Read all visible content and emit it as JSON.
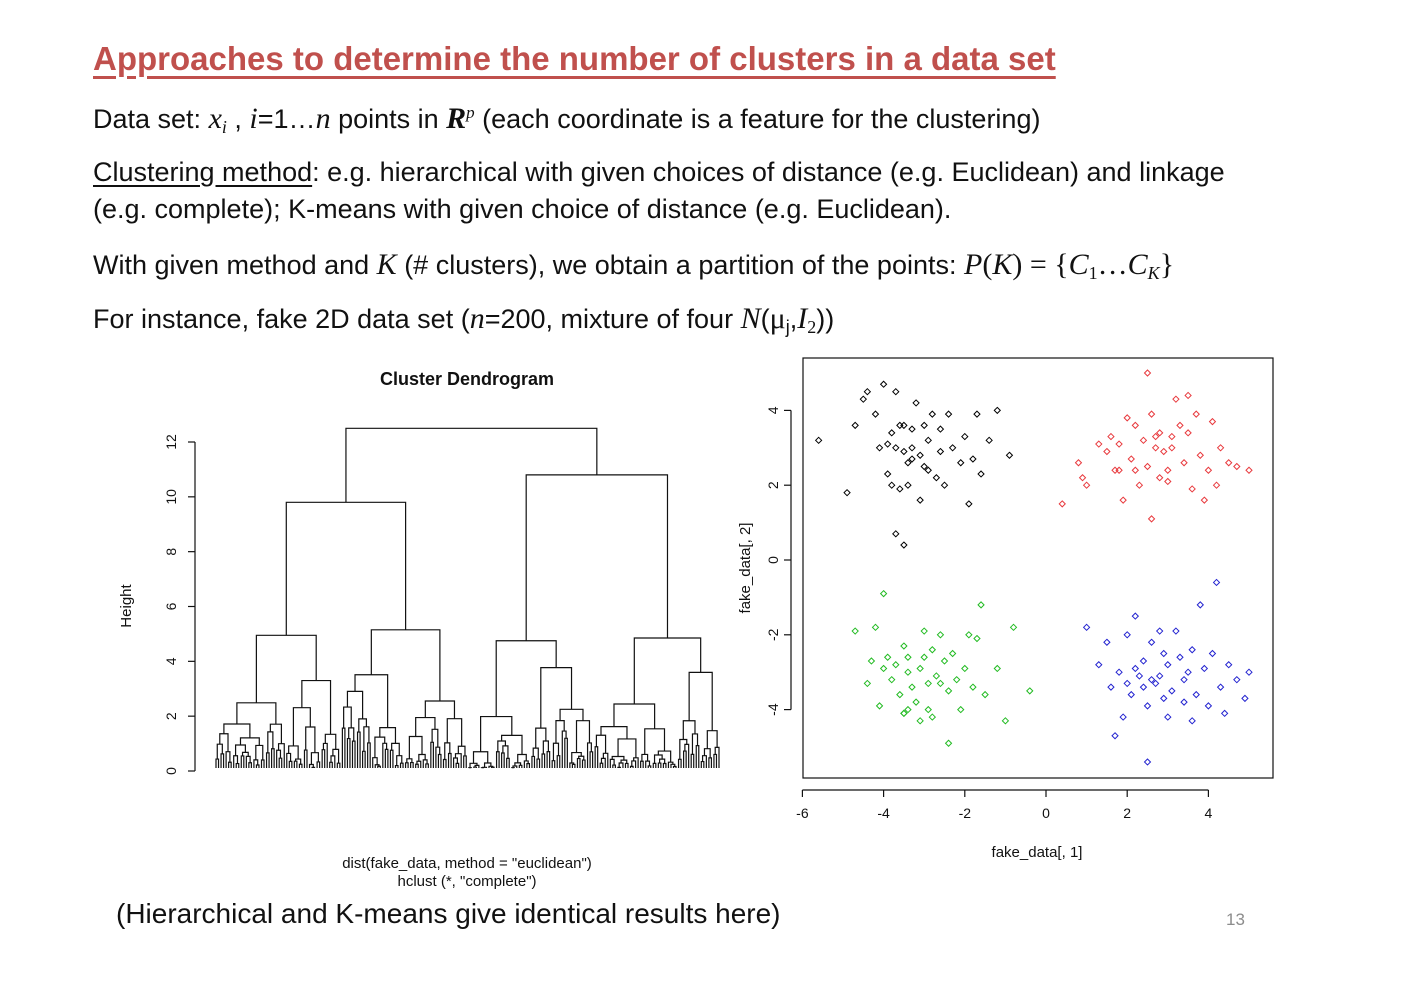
{
  "slide": {
    "title": "Approaches to determine the number of clusters in a data set",
    "line1": {
      "a": "Data set: ",
      "x": "x",
      "xi": "i",
      "b": " , ",
      "i": "i",
      "c": "=1…",
      "n": "n",
      "d": " points in ",
      "R": "R",
      "p": "p",
      "e": " (each coordinate is a feature for the clustering)"
    },
    "line2": {
      "u": "Clustering method",
      "rest": ": e.g. hierarchical with given choices of distance (e.g. Euclidean) and linkage",
      "cont": "(e.g. complete); K-means with given choice of distance (e.g. Euclidean)."
    },
    "line3": {
      "a": "With given method and ",
      "K": "K",
      "b": " (#  clusters), we obtain a partition of the points: ",
      "P": "P",
      "c": "(",
      "K2": "K",
      "d": ") = {",
      "C": "C",
      "one": "1",
      "e": "…",
      "C2": "C",
      "Ksub": "K",
      "f": "}"
    },
    "line4": {
      "a": "For instance, fake 2D data set (",
      "n": "n",
      "b": "=200, mixture of four ",
      "N": "N",
      "c": "(",
      "mu": "μ",
      "j": "j",
      "comma": ",",
      "I": "I",
      "two": "2",
      "d": "))"
    },
    "caption": "(Hierarchical and K-means give identical results here)",
    "page_number": "13"
  },
  "chart_data": [
    {
      "type": "dendrogram",
      "title": "Cluster Dendrogram",
      "xlabel_line1": "dist(fake_data, method = \"euclidean\")",
      "xlabel_line2": "hclust (*, \"complete\")",
      "ylabel": "Height",
      "ylim": [
        0,
        13
      ],
      "yticks": [
        "0",
        "2",
        "4",
        "6",
        "8",
        "10",
        "12"
      ],
      "n_leaves": 200,
      "top_merges": [
        {
          "name": "root",
          "height": 12.5
        },
        {
          "name": "left group",
          "height": 9.8
        },
        {
          "name": "right group",
          "height": 10.8
        },
        {
          "name": "cluster 1",
          "height": 4.95
        },
        {
          "name": "cluster 2",
          "height": 5.15
        },
        {
          "name": "cluster 3",
          "height": 4.75
        },
        {
          "name": "cluster 4",
          "height": 4.85
        }
      ]
    },
    {
      "type": "scatter",
      "xlabel": "fake_data[, 1]",
      "ylabel": "fake_data[, 2]",
      "xlim": [
        -6.2,
        5.5
      ],
      "ylim": [
        -5.9,
        5.4
      ],
      "xticks": [
        "-6",
        "-4",
        "-2",
        "0",
        "2",
        "4"
      ],
      "yticks": [
        "-4",
        "-2",
        "0",
        "2",
        "4"
      ],
      "series": [
        {
          "color": "#000000",
          "points": [
            [
              -5.6,
              3.2
            ],
            [
              -4.9,
              1.8
            ],
            [
              -4.7,
              3.6
            ],
            [
              -4.5,
              4.3
            ],
            [
              -4.4,
              4.5
            ],
            [
              -4.2,
              3.9
            ],
            [
              -4.0,
              4.7
            ],
            [
              -3.9,
              2.3
            ],
            [
              -3.9,
              3.1
            ],
            [
              -3.8,
              3.4
            ],
            [
              -3.7,
              4.5
            ],
            [
              -3.7,
              3.0
            ],
            [
              -3.6,
              1.9
            ],
            [
              -3.6,
              3.6
            ],
            [
              -3.5,
              2.9
            ],
            [
              -3.5,
              3.6
            ],
            [
              -3.4,
              2.6
            ],
            [
              -3.4,
              2.0
            ],
            [
              -3.3,
              3.5
            ],
            [
              -3.3,
              2.7
            ],
            [
              -3.2,
              4.2
            ],
            [
              -3.1,
              1.6
            ],
            [
              -3.1,
              2.8
            ],
            [
              -3.0,
              2.5
            ],
            [
              -3.0,
              3.6
            ],
            [
              -2.9,
              3.2
            ],
            [
              -2.9,
              2.4
            ],
            [
              -2.8,
              3.9
            ],
            [
              -2.7,
              2.2
            ],
            [
              -2.6,
              3.5
            ],
            [
              -2.5,
              2.0
            ],
            [
              -2.4,
              3.9
            ],
            [
              -2.3,
              3.0
            ],
            [
              -2.1,
              2.6
            ],
            [
              -2.0,
              3.3
            ],
            [
              -1.9,
              1.5
            ],
            [
              -1.8,
              2.7
            ],
            [
              -1.7,
              3.9
            ],
            [
              -1.6,
              2.3
            ],
            [
              -1.4,
              3.2
            ],
            [
              -1.2,
              4.0
            ],
            [
              -0.9,
              2.8
            ],
            [
              -3.7,
              0.7
            ],
            [
              -3.5,
              0.4
            ],
            [
              -3.8,
              2.0
            ],
            [
              -4.1,
              3.0
            ],
            [
              -3.3,
              3.0
            ],
            [
              -2.6,
              2.9
            ]
          ]
        },
        {
          "color": "#e8393d",
          "points": [
            [
              0.4,
              1.5
            ],
            [
              0.8,
              2.6
            ],
            [
              0.9,
              2.2
            ],
            [
              1.0,
              2.0
            ],
            [
              1.3,
              3.1
            ],
            [
              1.5,
              2.9
            ],
            [
              1.6,
              3.3
            ],
            [
              1.7,
              2.4
            ],
            [
              1.8,
              3.1
            ],
            [
              1.9,
              1.6
            ],
            [
              2.0,
              3.8
            ],
            [
              2.1,
              2.7
            ],
            [
              2.2,
              3.6
            ],
            [
              2.3,
              2.0
            ],
            [
              2.4,
              3.2
            ],
            [
              2.5,
              2.5
            ],
            [
              2.6,
              1.1
            ],
            [
              2.6,
              3.9
            ],
            [
              2.7,
              3.0
            ],
            [
              2.8,
              2.2
            ],
            [
              2.8,
              3.4
            ],
            [
              2.9,
              2.9
            ],
            [
              3.0,
              2.4
            ],
            [
              3.1,
              3.0
            ],
            [
              3.1,
              3.3
            ],
            [
              3.2,
              4.3
            ],
            [
              3.3,
              3.6
            ],
            [
              3.4,
              2.6
            ],
            [
              3.5,
              3.4
            ],
            [
              3.6,
              1.9
            ],
            [
              3.7,
              3.9
            ],
            [
              3.8,
              2.8
            ],
            [
              3.9,
              1.6
            ],
            [
              4.0,
              2.4
            ],
            [
              4.1,
              3.7
            ],
            [
              4.2,
              2.0
            ],
            [
              4.3,
              3.0
            ],
            [
              4.5,
              2.6
            ],
            [
              4.7,
              2.5
            ],
            [
              5.0,
              2.4
            ],
            [
              2.5,
              5.0
            ],
            [
              3.5,
              4.4
            ],
            [
              2.7,
              3.3
            ],
            [
              2.2,
              2.4
            ],
            [
              3.0,
              2.1
            ],
            [
              1.8,
              2.4
            ]
          ]
        },
        {
          "color": "#22bb22",
          "points": [
            [
              -4.7,
              -1.9
            ],
            [
              -4.4,
              -3.3
            ],
            [
              -4.3,
              -2.7
            ],
            [
              -4.2,
              -1.8
            ],
            [
              -4.1,
              -3.9
            ],
            [
              -4.0,
              -2.9
            ],
            [
              -4.0,
              -0.9
            ],
            [
              -3.9,
              -2.6
            ],
            [
              -3.8,
              -3.2
            ],
            [
              -3.7,
              -2.8
            ],
            [
              -3.6,
              -3.6
            ],
            [
              -3.5,
              -4.1
            ],
            [
              -3.5,
              -2.3
            ],
            [
              -3.4,
              -2.6
            ],
            [
              -3.4,
              -4.0
            ],
            [
              -3.3,
              -3.4
            ],
            [
              -3.2,
              -3.8
            ],
            [
              -3.1,
              -2.9
            ],
            [
              -3.1,
              -4.3
            ],
            [
              -3.0,
              -1.9
            ],
            [
              -2.9,
              -3.3
            ],
            [
              -2.8,
              -2.4
            ],
            [
              -2.8,
              -4.2
            ],
            [
              -2.7,
              -3.1
            ],
            [
              -2.6,
              -2.0
            ],
            [
              -2.5,
              -2.7
            ],
            [
              -2.4,
              -3.5
            ],
            [
              -2.4,
              -4.9
            ],
            [
              -2.3,
              -2.5
            ],
            [
              -2.2,
              -3.2
            ],
            [
              -2.1,
              -4.0
            ],
            [
              -2.0,
              -2.9
            ],
            [
              -1.9,
              -2.0
            ],
            [
              -1.8,
              -3.4
            ],
            [
              -1.7,
              -2.1
            ],
            [
              -1.6,
              -1.2
            ],
            [
              -1.5,
              -3.6
            ],
            [
              -1.2,
              -2.9
            ],
            [
              -1.0,
              -4.3
            ],
            [
              -0.8,
              -1.8
            ],
            [
              -0.4,
              -3.5
            ],
            [
              -3.5,
              -4.1
            ],
            [
              -3.0,
              -2.6
            ],
            [
              -3.4,
              -3.0
            ],
            [
              -2.6,
              -3.3
            ],
            [
              -2.9,
              -4.0
            ]
          ]
        },
        {
          "color": "#2323d0",
          "points": [
            [
              1.0,
              -1.8
            ],
            [
              1.3,
              -2.8
            ],
            [
              1.5,
              -2.2
            ],
            [
              1.7,
              -4.7
            ],
            [
              1.8,
              -3.0
            ],
            [
              1.9,
              -4.2
            ],
            [
              2.0,
              -2.0
            ],
            [
              2.1,
              -3.6
            ],
            [
              2.2,
              -1.5
            ],
            [
              2.3,
              -3.1
            ],
            [
              2.4,
              -2.7
            ],
            [
              2.5,
              -3.9
            ],
            [
              2.5,
              -5.4
            ],
            [
              2.6,
              -2.2
            ],
            [
              2.7,
              -3.3
            ],
            [
              2.8,
              -1.9
            ],
            [
              2.9,
              -3.7
            ],
            [
              3.0,
              -2.8
            ],
            [
              3.1,
              -3.5
            ],
            [
              3.2,
              -1.9
            ],
            [
              3.3,
              -2.6
            ],
            [
              3.4,
              -3.8
            ],
            [
              3.5,
              -3.0
            ],
            [
              3.6,
              -2.4
            ],
            [
              3.7,
              -3.6
            ],
            [
              3.8,
              -1.2
            ],
            [
              3.9,
              -2.9
            ],
            [
              4.0,
              -3.9
            ],
            [
              4.1,
              -2.5
            ],
            [
              4.2,
              -0.6
            ],
            [
              4.3,
              -3.4
            ],
            [
              4.4,
              -4.1
            ],
            [
              4.5,
              -2.8
            ],
            [
              4.7,
              -3.2
            ],
            [
              4.9,
              -3.7
            ],
            [
              5.0,
              -3.0
            ],
            [
              2.2,
              -2.9
            ],
            [
              2.6,
              -3.2
            ],
            [
              3.0,
              -4.2
            ],
            [
              1.6,
              -3.4
            ],
            [
              3.6,
              -4.3
            ],
            [
              2.9,
              -2.5
            ],
            [
              2.4,
              -3.4
            ],
            [
              2.8,
              -3.1
            ],
            [
              3.4,
              -3.2
            ],
            [
              2.0,
              -3.3
            ]
          ]
        }
      ]
    }
  ]
}
